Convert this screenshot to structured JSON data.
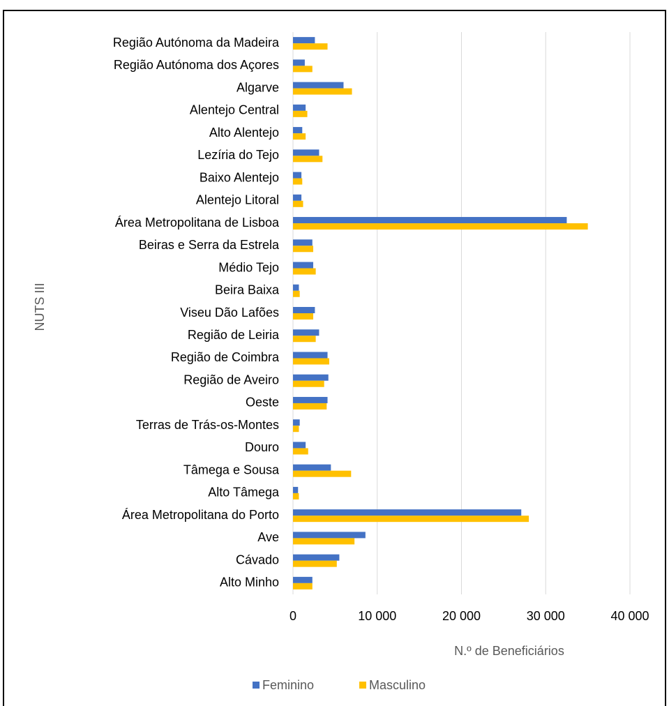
{
  "chart_data": {
    "type": "barh",
    "categories": [
      "Região Autónoma da Madeira",
      "Região Autónoma dos Açores",
      "Algarve",
      "Alentejo Central",
      "Alto Alentejo",
      "Lezíria do Tejo",
      "Baixo Alentejo",
      "Alentejo Litoral",
      "Área Metropolitana de Lisboa",
      "Beiras e Serra da Estrela",
      "Médio Tejo",
      "Beira Baixa",
      "Viseu Dão Lafões",
      "Região de Leiria",
      "Região de Coimbra",
      "Região de Aveiro",
      "Oeste",
      "Terras de Trás-os-Montes",
      "Douro",
      "Tâmega e Sousa",
      "Alto Tâmega",
      "Área Metropolitana do Porto",
      "Ave",
      "Cávado",
      "Alto Minho"
    ],
    "series": [
      {
        "name": "Feminino",
        "color": "#4472c4",
        "values": [
          2600,
          1400,
          6000,
          1500,
          1100,
          3100,
          1000,
          1000,
          32500,
          2300,
          2400,
          700,
          2600,
          3100,
          4100,
          4200,
          4100,
          800,
          1500,
          4500,
          600,
          27100,
          8600,
          5500,
          2300
        ]
      },
      {
        "name": "Masculino",
        "color": "#ffc000",
        "values": [
          4100,
          2300,
          7000,
          1700,
          1500,
          3500,
          1100,
          1200,
          35000,
          2400,
          2700,
          800,
          2400,
          2700,
          4300,
          3700,
          4000,
          700,
          1800,
          6900,
          700,
          28000,
          7300,
          5200,
          2300
        ]
      }
    ],
    "xlim": [
      0,
      40000
    ],
    "xticks": [
      0,
      {
        "value": 10000,
        "label": "10 000"
      },
      {
        "value": 20000,
        "label": "20 000"
      },
      {
        "value": 30000,
        "label": "30 000"
      },
      {
        "value": 40000,
        "label": "40 000"
      }
    ],
    "x_label": "N.º de Beneficiários",
    "y_label": "NUTS III",
    "grid": true,
    "legend": "bottom"
  }
}
